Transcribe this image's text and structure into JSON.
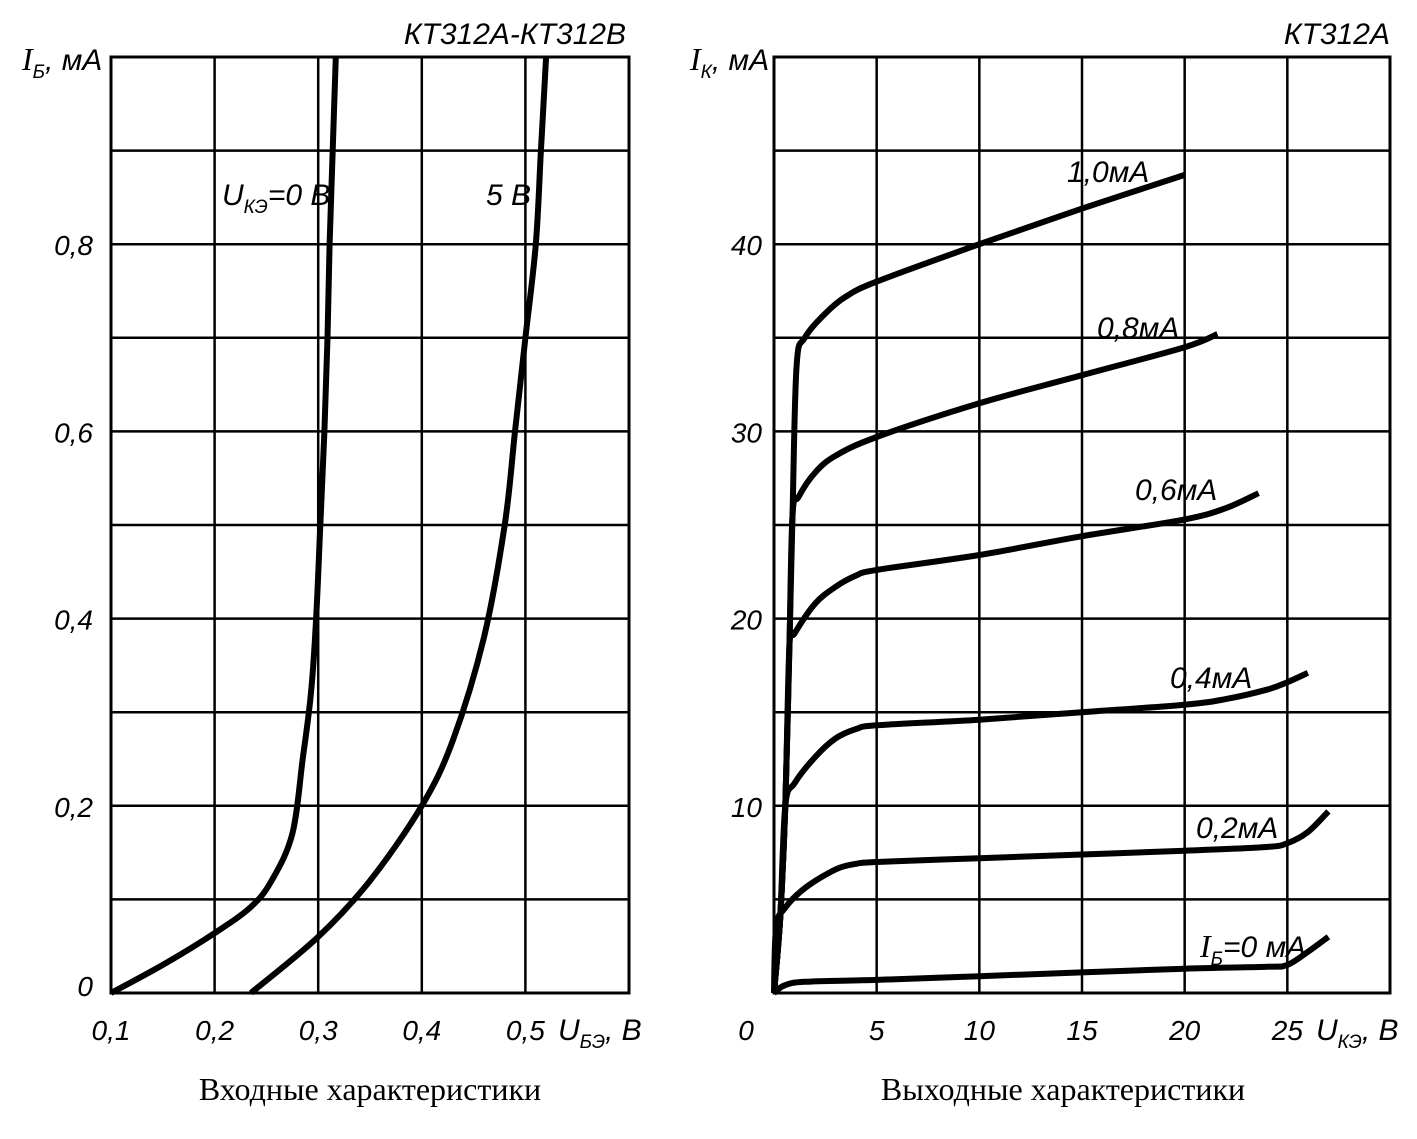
{
  "chart_data": [
    {
      "type": "line",
      "title": "КТ312А-КТ312В",
      "caption": "Входные характеристики",
      "xlabel_main": "U",
      "xlabel_sub": "БЭ",
      "xlabel_unit": ", В",
      "ylabel_main": "I",
      "ylabel_sub": "Б",
      "ylabel_unit": ", мА",
      "xlim": [
        0.1,
        0.6
      ],
      "ylim": [
        0,
        1.0
      ],
      "x_ticks": [
        "0,1",
        "0,2",
        "0,3",
        "0,4",
        "0,5"
      ],
      "y_ticks": [
        "0",
        "0,2",
        "0,4",
        "0,6",
        "0,8"
      ],
      "grid": true,
      "series": [
        {
          "name": "UКЭ=0В",
          "label_main": "U",
          "label_sub": "КЭ",
          "label_rest": "=0 В",
          "points": [
            [
              0.1,
              0
            ],
            [
              0.15,
              0.03
            ],
            [
              0.2,
              0.064
            ],
            [
              0.235,
              0.092
            ],
            [
              0.255,
              0.12
            ],
            [
              0.275,
              0.17
            ],
            [
              0.285,
              0.25
            ],
            [
              0.293,
              0.32
            ],
            [
              0.298,
              0.4
            ],
            [
              0.302,
              0.5
            ],
            [
              0.306,
              0.6
            ],
            [
              0.309,
              0.7
            ],
            [
              0.311,
              0.8
            ],
            [
              0.314,
              0.9
            ],
            [
              0.317,
              1.0
            ]
          ]
        },
        {
          "name": "5В",
          "label_main": "5 В",
          "points": [
            [
              0.235,
              0
            ],
            [
              0.3,
              0.06
            ],
            [
              0.35,
              0.12
            ],
            [
              0.4,
              0.2
            ],
            [
              0.43,
              0.27
            ],
            [
              0.46,
              0.38
            ],
            [
              0.48,
              0.5
            ],
            [
              0.49,
              0.6
            ],
            [
              0.5,
              0.7
            ],
            [
              0.51,
              0.8
            ],
            [
              0.515,
              0.9
            ],
            [
              0.52,
              1.0
            ]
          ]
        }
      ]
    },
    {
      "type": "line",
      "title": "КТ312А",
      "caption": "Выходные характеристики",
      "xlabel_main": "U",
      "xlabel_sub": "КЭ",
      "xlabel_unit": ", В",
      "ylabel_main": "I",
      "ylabel_sub": "К",
      "ylabel_unit": ", мА",
      "xlim": [
        0,
        30
      ],
      "ylim": [
        0,
        50
      ],
      "x_ticks": [
        "0",
        "5",
        "10",
        "15",
        "20",
        "25"
      ],
      "y_ticks": [
        "10",
        "20",
        "30",
        "40"
      ],
      "grid": true,
      "series": [
        {
          "name": "IБ=0мА",
          "label_main": "I",
          "label_sub": "Б",
          "label_rest": "=0 мА",
          "points": [
            [
              0,
              0
            ],
            [
              0.5,
              0.4
            ],
            [
              1.5,
              0.6
            ],
            [
              5,
              0.7
            ],
            [
              10,
              0.9
            ],
            [
              15,
              1.1
            ],
            [
              20,
              1.3
            ],
            [
              24,
              1.4
            ],
            [
              25,
              1.5
            ],
            [
              26,
              2.2
            ],
            [
              27,
              3.0
            ]
          ]
        },
        {
          "name": "0,2мА",
          "points": [
            [
              0,
              0
            ],
            [
              0.1,
              3.5
            ],
            [
              0.5,
              4.5
            ],
            [
              1.5,
              5.6
            ],
            [
              3,
              6.6
            ],
            [
              4,
              6.9
            ],
            [
              5,
              7.0
            ],
            [
              10,
              7.2
            ],
            [
              15,
              7.4
            ],
            [
              20,
              7.6
            ],
            [
              24,
              7.8
            ],
            [
              25,
              8.0
            ],
            [
              26,
              8.6
            ],
            [
              27,
              9.7
            ]
          ]
        },
        {
          "name": "0,4мА",
          "points": [
            [
              0,
              0
            ],
            [
              0.3,
              4
            ],
            [
              0.55,
              10
            ],
            [
              1,
              11.2
            ],
            [
              2,
              12.6
            ],
            [
              3,
              13.6
            ],
            [
              4,
              14.1
            ],
            [
              5,
              14.3
            ],
            [
              10,
              14.6
            ],
            [
              15,
              15.0
            ],
            [
              20,
              15.4
            ],
            [
              22,
              15.7
            ],
            [
              24,
              16.2
            ],
            [
              25,
              16.6
            ],
            [
              26,
              17.1
            ]
          ]
        },
        {
          "name": "0,6мА",
          "points": [
            [
              0,
              0
            ],
            [
              0.3,
              4
            ],
            [
              0.55,
              10
            ],
            [
              0.75,
              18.5
            ],
            [
              1,
              19.2
            ],
            [
              2,
              20.8
            ],
            [
              3,
              21.7
            ],
            [
              4,
              22.3
            ],
            [
              5,
              22.6
            ],
            [
              10,
              23.4
            ],
            [
              15,
              24.4
            ],
            [
              20,
              25.3
            ],
            [
              22,
              25.9
            ],
            [
              23.6,
              26.7
            ]
          ]
        },
        {
          "name": "0,8мА",
          "points": [
            [
              0,
              0
            ],
            [
              0.3,
              4
            ],
            [
              0.55,
              10
            ],
            [
              0.75,
              18.5
            ],
            [
              0.9,
              25.5
            ],
            [
              1.2,
              26.5
            ],
            [
              2,
              27.8
            ],
            [
              3,
              28.7
            ],
            [
              5,
              29.7
            ],
            [
              10,
              31.5
            ],
            [
              15,
              33.0
            ],
            [
              20,
              34.5
            ],
            [
              21.6,
              35.2
            ]
          ]
        },
        {
          "name": "1,0мА",
          "points": [
            [
              0,
              0
            ],
            [
              0.3,
              4
            ],
            [
              0.55,
              10
            ],
            [
              0.75,
              18.5
            ],
            [
              0.9,
              25.5
            ],
            [
              1.1,
              33.5
            ],
            [
              1.5,
              35.0
            ],
            [
              2.5,
              36.3
            ],
            [
              3.5,
              37.2
            ],
            [
              5,
              38.0
            ],
            [
              10,
              40.0
            ],
            [
              15,
              41.9
            ],
            [
              20,
              43.7
            ]
          ]
        }
      ]
    }
  ]
}
